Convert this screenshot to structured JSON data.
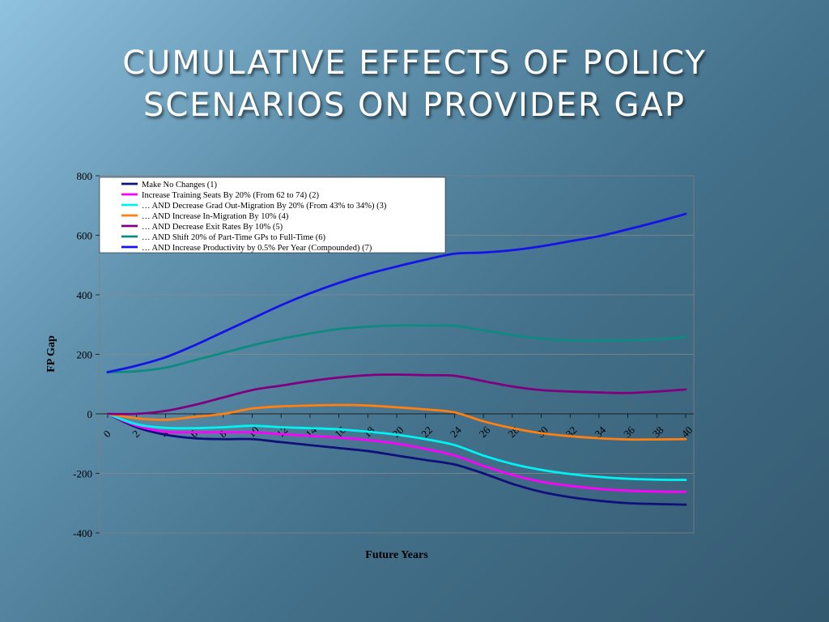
{
  "slide": {
    "title_line1": "CUMULATIVE EFFECTS OF POLICY",
    "title_line2": "SCENARIOS ON PROVIDER GAP"
  },
  "chart_data": {
    "type": "line",
    "xlabel": "Future Years",
    "ylabel": "FP Gap",
    "xlim": [
      0,
      40
    ],
    "ylim": [
      -400,
      800
    ],
    "yticks": [
      -400,
      -200,
      0,
      200,
      400,
      600,
      800
    ],
    "xticks": [
      0,
      2,
      4,
      6,
      8,
      10,
      12,
      14,
      16,
      18,
      20,
      22,
      24,
      26,
      28,
      30,
      32,
      34,
      36,
      38,
      40
    ],
    "grid": "horizontal",
    "legend_position": "top-left",
    "x": [
      0,
      2,
      4,
      6,
      8,
      10,
      12,
      14,
      16,
      18,
      20,
      22,
      24,
      26,
      28,
      30,
      32,
      34,
      36,
      38,
      40
    ],
    "series": [
      {
        "name": "Make No Changes (1)",
        "color": "#10107a",
        "values": [
          0,
          -45,
          -70,
          -82,
          -85,
          -85,
          -95,
          -105,
          -115,
          -125,
          -140,
          -155,
          -170,
          -200,
          -235,
          -262,
          -280,
          -292,
          -300,
          -303,
          -305
        ]
      },
      {
        "name": "Increase Training Seats By 20% (From 62 to 74) (2)",
        "color": "#ff00ff",
        "values": [
          0,
          -40,
          -60,
          -62,
          -62,
          -62,
          -68,
          -74,
          -80,
          -88,
          -100,
          -118,
          -140,
          -175,
          -205,
          -228,
          -242,
          -252,
          -258,
          -261,
          -262
        ]
      },
      {
        "name": "… AND Decrease Grad Out-Migration By 20% (From 43% to 34%) (3)",
        "color": "#00f2f2",
        "values": [
          0,
          -35,
          -47,
          -48,
          -45,
          -40,
          -45,
          -48,
          -52,
          -60,
          -70,
          -85,
          -105,
          -140,
          -168,
          -188,
          -202,
          -212,
          -218,
          -221,
          -222
        ]
      },
      {
        "name": "… AND Increase In-Migration By 10% (4)",
        "color": "#ff7f10",
        "values": [
          0,
          -15,
          -20,
          -10,
          0,
          18,
          25,
          28,
          30,
          28,
          22,
          15,
          5,
          -25,
          -48,
          -65,
          -75,
          -82,
          -86,
          -86,
          -85
        ]
      },
      {
        "name": "… AND Decrease Exit Rates By 10% (5)",
        "color": "#800080",
        "values": [
          0,
          0,
          10,
          30,
          55,
          80,
          95,
          110,
          122,
          130,
          132,
          130,
          128,
          110,
          92,
          80,
          75,
          72,
          70,
          75,
          82
        ]
      },
      {
        "name": "… AND Shift 20% of Part-Time GPs to Full-Time (6)",
        "color": "#0e8a80",
        "values": [
          140,
          143,
          155,
          180,
          205,
          230,
          252,
          270,
          285,
          293,
          297,
          297,
          296,
          280,
          265,
          252,
          247,
          246,
          247,
          250,
          258
        ]
      },
      {
        "name": "… AND Increase Productivity by 0.5% Per Year (Compounded) (7)",
        "color": "#1414e8",
        "values": [
          140,
          162,
          190,
          230,
          275,
          320,
          365,
          405,
          440,
          470,
          495,
          518,
          538,
          542,
          550,
          563,
          580,
          597,
          620,
          645,
          672
        ]
      }
    ]
  }
}
